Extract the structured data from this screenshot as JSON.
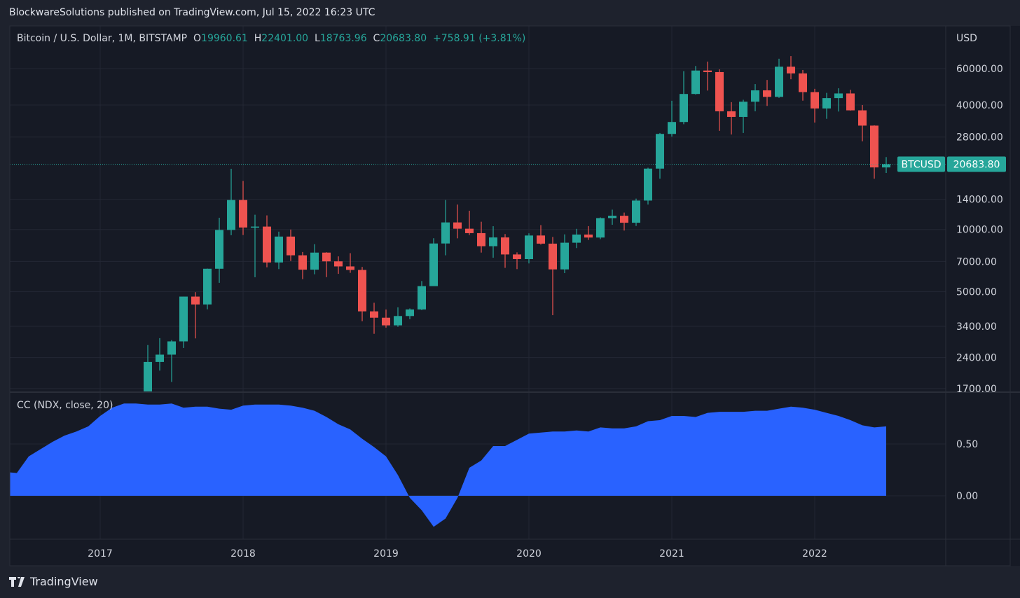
{
  "header": {
    "published": "BlockwareSolutions published on TradingView.com, Jul 15, 2022 16:23 UTC"
  },
  "legend": {
    "symbol": "Bitcoin / U.S. Dollar, 1M, BITSTAMP",
    "o_label": "O",
    "o": "19960.61",
    "h_label": "H",
    "h": "22401.00",
    "l_label": "L",
    "l": "18763.96",
    "c_label": "C",
    "c": "20683.80",
    "change": "+758.91 (+3.81%)"
  },
  "indicator": {
    "label": "CC (NDX, close, 20)"
  },
  "footer": {
    "brand": "TradingView"
  },
  "colors": {
    "up": "#26a69a",
    "down": "#ef5350",
    "area": "#2962ff",
    "background": "#161a25"
  },
  "chart_data": [
    {
      "type": "candlestick",
      "scale": "log",
      "currency_label": "USD",
      "symbol_tag": "BTCUSD",
      "last_price": "20683.80",
      "y_ticks": [
        "60000.00",
        "40000.00",
        "28000.00",
        "14000.00",
        "10000.00",
        "7000.00",
        "5000.00",
        "3400.00",
        "2400.00",
        "1700.00"
      ],
      "x_ticks": [
        "2017",
        "2018",
        "2019",
        "2020",
        "2021",
        "2022"
      ],
      "start": "2017-05",
      "ohlc": [
        [
          1348,
          2760,
          1345,
          2286
        ],
        [
          2286,
          2980,
          2076,
          2480
        ],
        [
          2480,
          2916,
          1830,
          2875
        ],
        [
          2875,
          4736,
          2671,
          4735
        ],
        [
          4735,
          4975,
          2972,
          4338
        ],
        [
          4338,
          6470,
          4110,
          6457
        ],
        [
          6457,
          11395,
          5519,
          9946
        ],
        [
          9946,
          19666,
          9380,
          13880
        ],
        [
          13880,
          17176,
          9400,
          10221
        ],
        [
          10221,
          11787,
          5873,
          10326
        ],
        [
          10326,
          11700,
          6560,
          6926
        ],
        [
          6926,
          9760,
          6430,
          9240
        ],
        [
          9240,
          9990,
          7038,
          7500
        ],
        [
          7500,
          7780,
          5750,
          6390
        ],
        [
          6390,
          8490,
          6070,
          7729
        ],
        [
          7729,
          7760,
          5880,
          7011
        ],
        [
          7011,
          7410,
          6100,
          6626
        ],
        [
          6626,
          7680,
          6170,
          6371
        ],
        [
          6371,
          6590,
          3600,
          4017
        ],
        [
          4017,
          4420,
          3128,
          3742
        ],
        [
          3742,
          4100,
          3350,
          3437
        ],
        [
          3437,
          4200,
          3380,
          3813
        ],
        [
          3813,
          4150,
          3680,
          4103
        ],
        [
          4103,
          5630,
          4070,
          5320
        ],
        [
          5320,
          9070,
          5330,
          8555
        ],
        [
          8555,
          13880,
          7500,
          10817
        ],
        [
          10817,
          13200,
          9060,
          10085
        ],
        [
          10085,
          12320,
          9400,
          9600
        ],
        [
          9600,
          10900,
          7730,
          8300
        ],
        [
          8300,
          10370,
          7300,
          9150
        ],
        [
          9150,
          9500,
          6520,
          7570
        ],
        [
          7570,
          7750,
          6430,
          7190
        ],
        [
          7190,
          9580,
          6850,
          9350
        ],
        [
          9350,
          10500,
          8450,
          8540
        ],
        [
          8540,
          9200,
          3850,
          6410
        ],
        [
          6410,
          9470,
          6150,
          8630
        ],
        [
          8630,
          10070,
          8130,
          9450
        ],
        [
          9450,
          10380,
          8900,
          9140
        ],
        [
          9140,
          11440,
          8980,
          11350
        ],
        [
          11350,
          12470,
          10540,
          11650
        ],
        [
          11650,
          12070,
          9880,
          10780
        ],
        [
          10780,
          14100,
          10400,
          13800
        ],
        [
          13800,
          19900,
          13200,
          19700
        ],
        [
          19700,
          29300,
          17600,
          28990
        ],
        [
          28990,
          41950,
          28130,
          33110
        ],
        [
          33110,
          58350,
          32300,
          45240
        ],
        [
          45240,
          61780,
          44960,
          58740
        ],
        [
          58740,
          64900,
          47000,
          57720
        ],
        [
          57720,
          59500,
          30000,
          37300
        ],
        [
          37300,
          41300,
          28800,
          35040
        ],
        [
          35040,
          42400,
          29300,
          41500
        ],
        [
          41500,
          50500,
          37300,
          47100
        ],
        [
          47100,
          52900,
          39600,
          43800
        ],
        [
          43800,
          67000,
          43300,
          61300
        ],
        [
          61300,
          69000,
          53300,
          56900
        ],
        [
          56900,
          59100,
          42000,
          46200
        ],
        [
          46200,
          47900,
          32900,
          38500
        ],
        [
          38500,
          45800,
          34300,
          43200
        ],
        [
          43200,
          48200,
          37200,
          45500
        ],
        [
          45500,
          47400,
          37600,
          37700
        ],
        [
          37700,
          40000,
          26700,
          31800
        ],
        [
          31800,
          31900,
          17600,
          19960.61
        ],
        [
          19960.61,
          22401,
          18763.96,
          20683.8
        ]
      ]
    },
    {
      "type": "area",
      "name": "CC (NDX, close, 20)",
      "y_ticks": [
        "0.50",
        "0.00"
      ],
      "start": "2016-05",
      "values": [
        0.23,
        0.22,
        0.38,
        0.45,
        0.52,
        0.58,
        0.62,
        0.67,
        0.77,
        0.85,
        0.89,
        0.89,
        0.88,
        0.88,
        0.89,
        0.85,
        0.86,
        0.86,
        0.84,
        0.83,
        0.87,
        0.88,
        0.88,
        0.88,
        0.87,
        0.85,
        0.82,
        0.76,
        0.69,
        0.64,
        0.55,
        0.47,
        0.38,
        0.2,
        -0.02,
        -0.14,
        -0.3,
        -0.22,
        -0.02,
        0.27,
        0.34,
        0.48,
        0.48,
        0.54,
        0.6,
        0.61,
        0.62,
        0.62,
        0.63,
        0.62,
        0.66,
        0.65,
        0.65,
        0.67,
        0.72,
        0.73,
        0.77,
        0.77,
        0.76,
        0.8,
        0.81,
        0.81,
        0.81,
        0.82,
        0.82,
        0.84,
        0.86,
        0.85,
        0.83,
        0.8,
        0.77,
        0.73,
        0.68,
        0.66,
        0.67
      ]
    }
  ]
}
